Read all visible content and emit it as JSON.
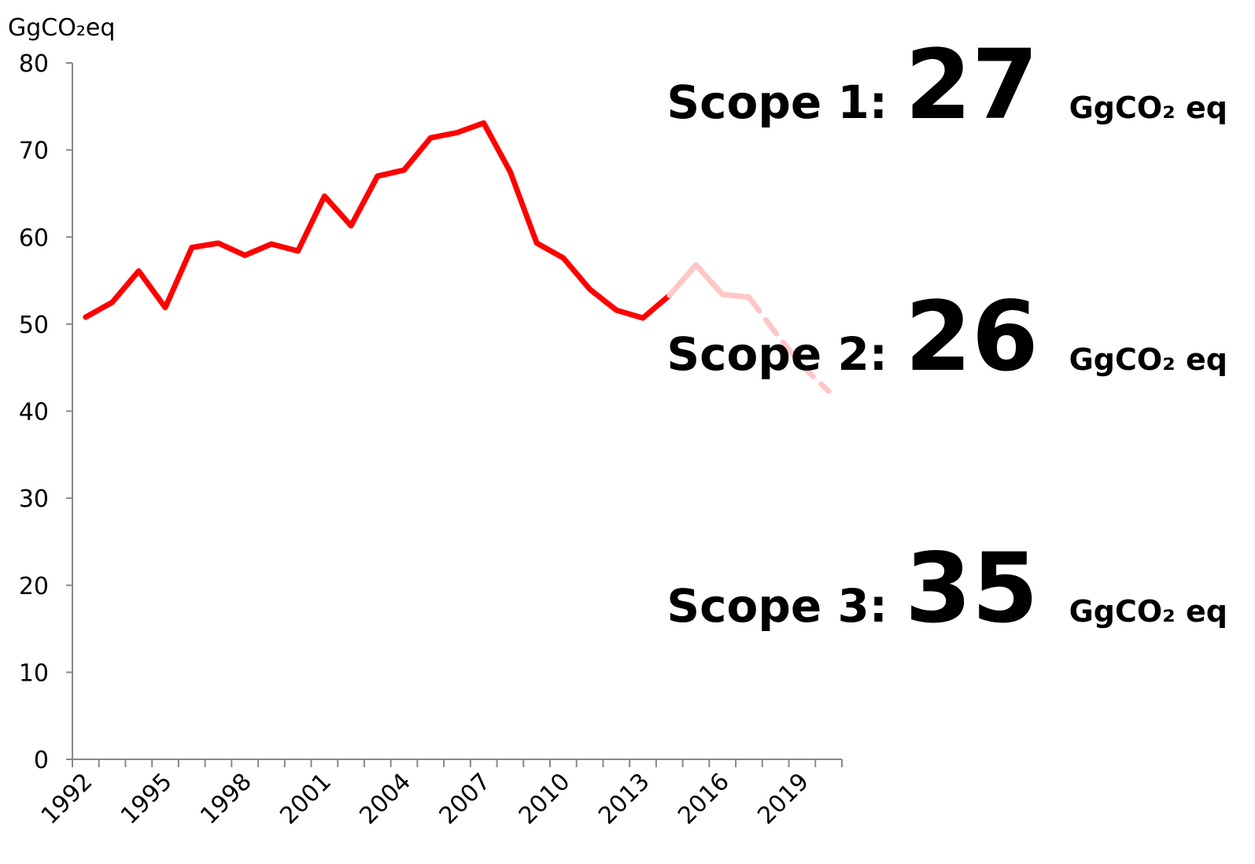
{
  "chart_data": {
    "type": "line",
    "ylabel": "GgCO₂eq",
    "categories": [
      "1992",
      null,
      null,
      "1995",
      null,
      null,
      "1998",
      null,
      null,
      "2001",
      null,
      null,
      "2004",
      null,
      null,
      "2007",
      null,
      null,
      "2010",
      null,
      null,
      "2013",
      null,
      null,
      "2016",
      null,
      null,
      "2019",
      null
    ],
    "series": [
      {
        "color": "#ff0000",
        "dashed": false,
        "values": [
          50.8,
          52.5,
          56.1,
          51.9,
          58.8,
          59.3,
          57.9,
          59.2,
          58.4,
          64.7,
          61.3,
          67,
          67.7,
          71.4,
          72,
          73.1,
          67.5,
          59.3,
          57.6,
          54,
          51.6,
          50.7,
          53.3,
          null,
          null,
          null,
          null,
          null,
          null
        ]
      },
      {
        "color": "#ffc7c7",
        "dashed": false,
        "values": [
          null,
          null,
          null,
          null,
          null,
          null,
          null,
          null,
          null,
          null,
          null,
          null,
          null,
          null,
          null,
          null,
          null,
          null,
          null,
          null,
          null,
          null,
          53.3,
          56.8,
          53.4,
          53.1,
          null,
          null,
          null
        ]
      },
      {
        "color": "#ffc7c7",
        "dashed": true,
        "values": [
          null,
          null,
          null,
          null,
          null,
          null,
          null,
          null,
          null,
          null,
          null,
          null,
          null,
          null,
          null,
          null,
          null,
          null,
          null,
          null,
          null,
          null,
          null,
          null,
          null,
          53.1,
          49,
          45.2,
          42.3
        ]
      }
    ],
    "ylim": [
      0,
      80
    ],
    "yticks": [
      0,
      10,
      20,
      30,
      40,
      50,
      60,
      70,
      80
    ],
    "annotations": [
      {
        "label": "Scope 1:",
        "value": 27,
        "unit": "GgCO₂ eq"
      },
      {
        "label": "Scope 2:",
        "value": 26,
        "unit": "GgCO₂ eq"
      },
      {
        "label": "Scope 3:",
        "value": 35,
        "unit": "GgCO₂ eq"
      }
    ]
  }
}
